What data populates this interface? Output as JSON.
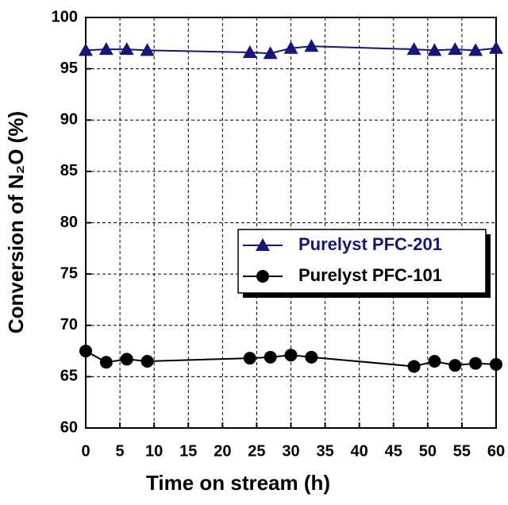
{
  "chart_data": {
    "type": "line",
    "x_label": "Time on stream (h)",
    "y_label": "Conversion of N₂O (%)",
    "x": [
      0,
      3,
      6,
      9,
      24,
      27,
      30,
      33,
      48,
      51,
      54,
      57,
      60
    ],
    "series": [
      {
        "name": "Purelyst PFC-201",
        "color": "#15157a",
        "marker": "triangle",
        "values": [
          96.8,
          96.9,
          96.9,
          96.8,
          96.6,
          96.5,
          97.0,
          97.2,
          96.9,
          96.8,
          96.9,
          96.8,
          97.0
        ]
      },
      {
        "name": "Purelyst PFC-101",
        "color": "#000000",
        "marker": "circle",
        "values": [
          67.5,
          66.4,
          66.7,
          66.5,
          66.8,
          66.9,
          67.1,
          66.9,
          66.0,
          66.5,
          66.1,
          66.3,
          66.2
        ]
      }
    ],
    "xlim": [
      0,
      60
    ],
    "xticks": [
      0,
      5,
      10,
      15,
      20,
      25,
      30,
      35,
      40,
      45,
      50,
      55,
      60
    ],
    "ylim": [
      60,
      100
    ],
    "yticks": [
      60,
      65,
      70,
      75,
      80,
      85,
      90,
      95,
      100
    ],
    "grid": true
  }
}
